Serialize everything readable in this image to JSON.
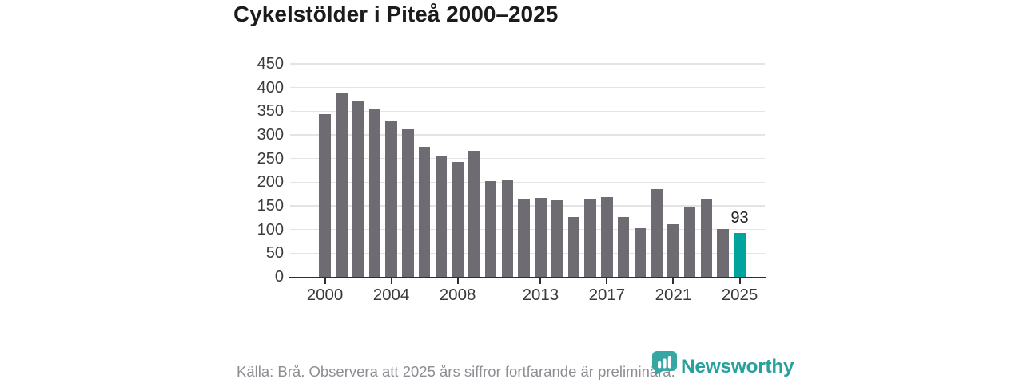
{
  "title": "Cykelstölder i Piteå 2000–2025",
  "chart_data": {
    "type": "bar",
    "title": "Cykelstölder i Piteå 2000–2025",
    "x": [
      2000,
      2001,
      2002,
      2003,
      2004,
      2005,
      2006,
      2007,
      2008,
      2009,
      2010,
      2011,
      2012,
      2013,
      2014,
      2015,
      2016,
      2017,
      2018,
      2019,
      2020,
      2021,
      2022,
      2023,
      2024,
      2025
    ],
    "values": [
      344,
      388,
      373,
      356,
      328,
      312,
      274,
      254,
      243,
      266,
      202,
      204,
      164,
      167,
      161,
      126,
      163,
      169,
      126,
      103,
      185,
      112,
      148,
      164,
      101,
      93
    ],
    "ylim": [
      0,
      450
    ],
    "yticks": [
      0,
      50,
      100,
      150,
      200,
      250,
      300,
      350,
      400,
      450
    ],
    "xticks": [
      2000,
      2004,
      2008,
      2013,
      2017,
      2021,
      2025
    ],
    "grid": "horizontal",
    "bar_color": "#6f6b72",
    "highlight_year": 2025,
    "highlight_value": 93,
    "highlight_label": "93",
    "highlight_color": "#00a49c",
    "legend": "none"
  },
  "footer": {
    "source_text": "Källa: Brå. Observera att 2025 års siffror fortfarande är preliminära."
  },
  "branding": {
    "logo_text": "Newsworthy",
    "logo_icon": "bar-chart-speech-bubble-icon",
    "logo_icon_color": "#36a7a2",
    "logo_text_color": "#28a09b"
  }
}
